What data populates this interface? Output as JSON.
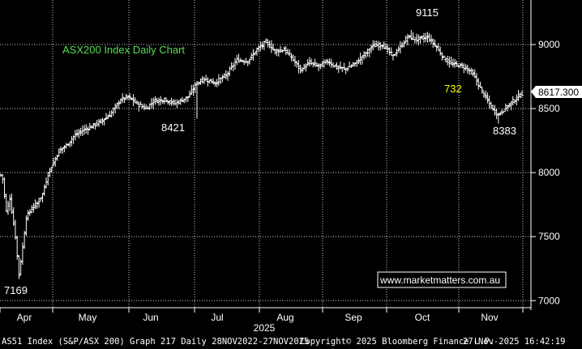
{
  "chart_data": {
    "type": "ohlc",
    "title": "ASX200 Index Daily Chart",
    "ylim": [
      6970,
      9310
    ],
    "yticks": [
      7000,
      7500,
      8000,
      8500,
      9000
    ],
    "y_tick_labels": [
      "7000",
      "7500",
      "8000",
      "8500",
      "9000"
    ],
    "x_months": [
      "Apr",
      "May",
      "Jun",
      "Jul",
      "Aug",
      "Sep",
      "Oct",
      "Nov"
    ],
    "x_year": "2025",
    "grid": true,
    "last_value": 8617.3,
    "last_value_label": "8617.300",
    "annotations": [
      {
        "text": "9115",
        "x": 1,
        "color": "white"
      },
      {
        "text": "8421",
        "x": 2,
        "color": "white"
      },
      {
        "text": "7169",
        "x": 3,
        "color": "white"
      },
      {
        "text": "8383",
        "x": 4,
        "color": "white"
      },
      {
        "text": "732",
        "x": 5,
        "color": "yellow"
      }
    ],
    "watermark": "www.marketmatters.com.au",
    "series": [
      {
        "anchors": [
          [
            0,
            7980
          ],
          [
            1,
            7950
          ],
          [
            3,
            7700
          ],
          [
            5,
            7800
          ],
          [
            8,
            7500
          ],
          [
            10,
            7200
          ],
          [
            12,
            7420
          ],
          [
            14,
            7650
          ],
          [
            17,
            7720
          ],
          [
            20,
            7760
          ],
          [
            23,
            7830
          ],
          [
            26,
            7990
          ],
          [
            29,
            8080
          ],
          [
            32,
            8170
          ],
          [
            36,
            8210
          ],
          [
            40,
            8280
          ],
          [
            45,
            8330
          ],
          [
            50,
            8360
          ],
          [
            55,
            8400
          ],
          [
            60,
            8450
          ],
          [
            66,
            8570
          ],
          [
            70,
            8590
          ],
          [
            76,
            8530
          ],
          [
            80,
            8500
          ],
          [
            84,
            8560
          ],
          [
            90,
            8570
          ],
          [
            96,
            8540
          ],
          [
            103,
            8590
          ],
          [
            108,
            8700
          ],
          [
            112,
            8730
          ],
          [
            118,
            8700
          ],
          [
            124,
            8760
          ],
          [
            130,
            8880
          ],
          [
            136,
            8870
          ],
          [
            141,
            8960
          ],
          [
            146,
            9020
          ],
          [
            151,
            8950
          ],
          [
            156,
            8960
          ],
          [
            160,
            8900
          ],
          [
            165,
            8800
          ],
          [
            170,
            8860
          ],
          [
            175,
            8830
          ],
          [
            180,
            8870
          ],
          [
            185,
            8820
          ],
          [
            190,
            8810
          ],
          [
            195,
            8850
          ],
          [
            200,
            8920
          ],
          [
            205,
            8990
          ],
          [
            210,
            9000
          ],
          [
            216,
            8910
          ],
          [
            220,
            8980
          ],
          [
            224,
            9060
          ],
          [
            229,
            9040
          ],
          [
            235,
            9060
          ],
          [
            240,
            8980
          ],
          [
            244,
            8890
          ],
          [
            248,
            8850
          ],
          [
            252,
            8840
          ],
          [
            256,
            8820
          ],
          [
            260,
            8770
          ],
          [
            264,
            8660
          ],
          [
            268,
            8560
          ],
          [
            271,
            8490
          ],
          [
            274,
            8450
          ],
          [
            276,
            8480
          ],
          [
            279,
            8520
          ],
          [
            283,
            8570
          ],
          [
            287,
            8617
          ]
        ]
      }
    ]
  }
}
